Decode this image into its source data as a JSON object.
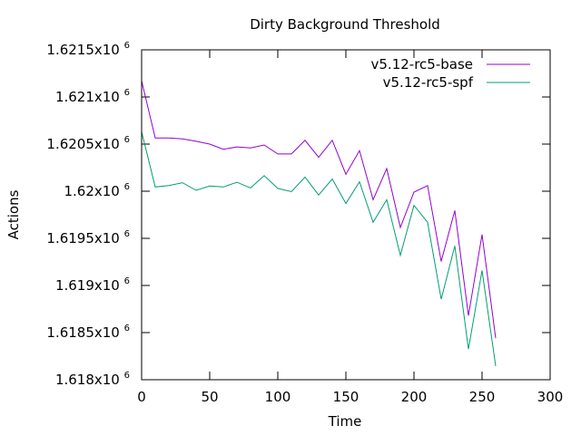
{
  "chart_data": {
    "type": "line",
    "title": "Dirty Background Threshold",
    "xlabel": "Time",
    "ylabel": "Actions",
    "xlim": [
      0,
      300
    ],
    "ylim": [
      1618000,
      1621500
    ],
    "x_ticks": [
      0,
      50,
      100,
      150,
      200,
      250,
      300
    ],
    "x_tick_labels": [
      "0",
      "50",
      "100",
      "150",
      "200",
      "250",
      "300"
    ],
    "y_ticks": [
      1618000,
      1618500,
      1619000,
      1619500,
      1620000,
      1620500,
      1621000,
      1621500
    ],
    "y_tick_labels": [
      {
        "mantissa": "1.618x10",
        "exp": "6"
      },
      {
        "mantissa": "1.6185x10",
        "exp": "6"
      },
      {
        "mantissa": "1.619x10",
        "exp": "6"
      },
      {
        "mantissa": "1.6195x10",
        "exp": "6"
      },
      {
        "mantissa": "1.62x10",
        "exp": "6"
      },
      {
        "mantissa": "1.6205x10",
        "exp": "6"
      },
      {
        "mantissa": "1.621x10",
        "exp": "6"
      },
      {
        "mantissa": "1.6215x10",
        "exp": "6"
      }
    ],
    "legend_position": "top-right",
    "x": [
      0,
      10,
      20,
      30,
      40,
      50,
      60,
      70,
      80,
      90,
      100,
      110,
      120,
      130,
      140,
      150,
      160,
      170,
      180,
      190,
      200,
      210,
      220,
      230,
      240,
      250,
      260
    ],
    "series": [
      {
        "name": "v5.12-rc5-base",
        "color": "#9400d3",
        "values": [
          1621170,
          1620565,
          1620565,
          1620555,
          1620530,
          1620500,
          1620445,
          1620470,
          1620460,
          1620490,
          1620395,
          1620395,
          1620540,
          1620360,
          1620540,
          1620180,
          1620430,
          1619910,
          1620240,
          1619615,
          1619990,
          1620060,
          1619255,
          1619795,
          1618680,
          1619540,
          1618440
        ]
      },
      {
        "name": "v5.12-rc5-spf",
        "color": "#009e73",
        "values": [
          1620630,
          1620045,
          1620060,
          1620090,
          1620010,
          1620055,
          1620045,
          1620095,
          1620035,
          1620165,
          1620030,
          1619995,
          1620150,
          1619960,
          1620130,
          1619870,
          1620100,
          1619670,
          1619910,
          1619320,
          1619850,
          1619670,
          1618855,
          1619420,
          1618325,
          1619160,
          1618145
        ]
      }
    ]
  }
}
